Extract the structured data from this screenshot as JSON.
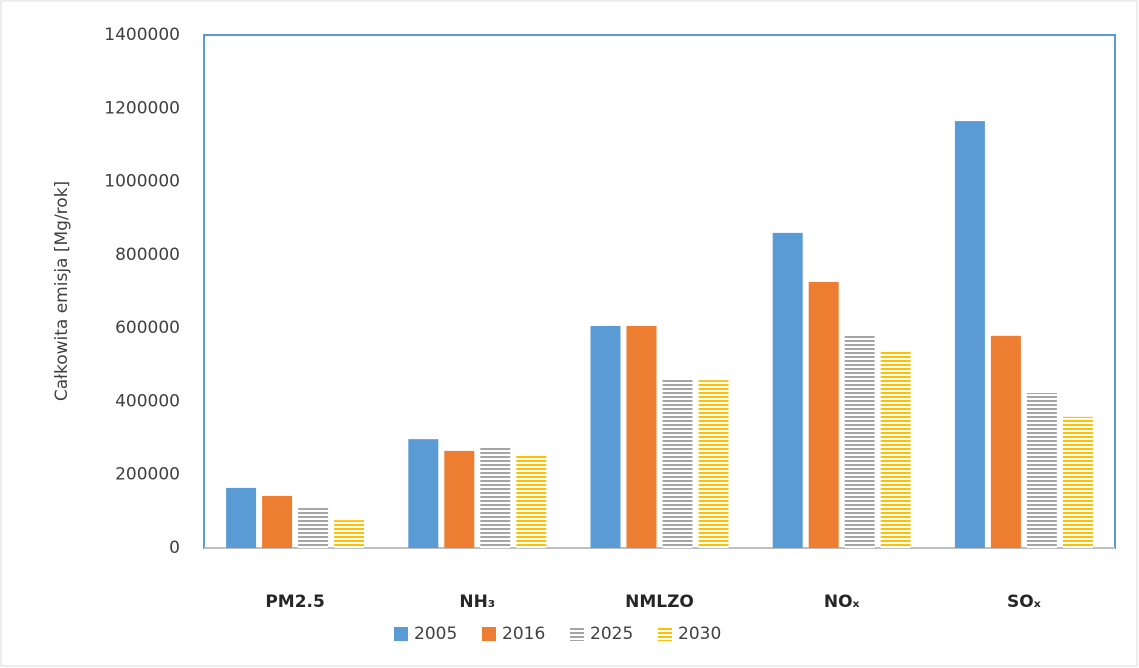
{
  "chart_data": {
    "type": "bar",
    "y_label": "Całkowita emisja [Mg/rok]",
    "categories": [
      "PM2.5",
      "NH₃",
      "NMLZO",
      "NOₓ",
      "SOₓ"
    ],
    "series": [
      {
        "name": "2005",
        "color": "#5b9bd5",
        "values": [
          164000,
          297000,
          606000,
          860000,
          1165000
        ]
      },
      {
        "name": "2016",
        "color": "#ed7d31",
        "values": [
          142000,
          265000,
          606000,
          726000,
          579000
        ]
      },
      {
        "name": "2025",
        "color": "#a5a5a5",
        "hatch": "horizontal",
        "values": [
          109000,
          278000,
          464000,
          581000,
          423000
        ]
      },
      {
        "name": "2030",
        "color": "#ffc000",
        "hatch": "horizontal",
        "values": [
          76000,
          254000,
          458000,
          540000,
          358000
        ]
      }
    ],
    "ylim": [
      0,
      1400000
    ],
    "yticks": [
      0,
      200000,
      400000,
      600000,
      800000,
      1000000,
      1200000,
      1400000
    ],
    "grid": false,
    "legend": "bottom"
  }
}
